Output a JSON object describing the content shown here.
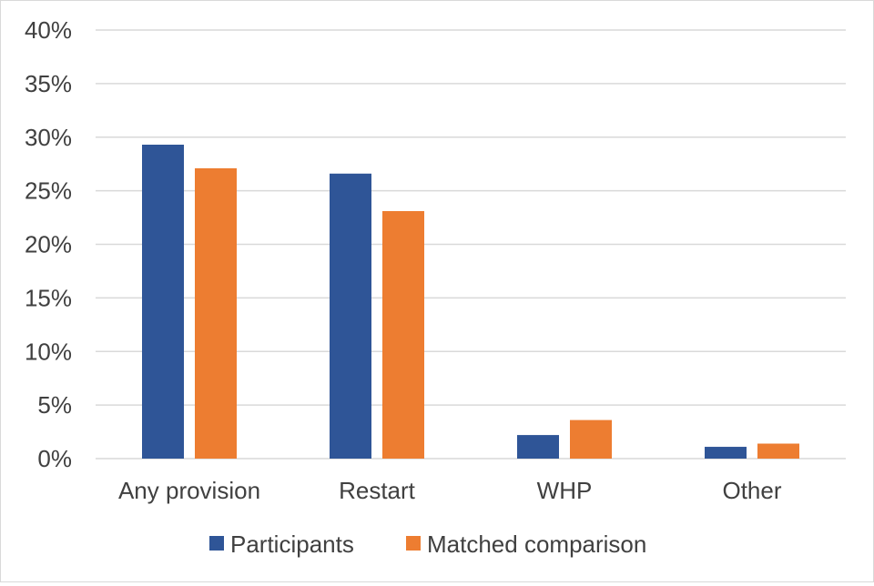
{
  "chart_data": {
    "type": "bar",
    "title": "",
    "xlabel": "",
    "ylabel": "",
    "categories": [
      "Any provision",
      "Restart",
      "WHP",
      "Other"
    ],
    "series": [
      {
        "name": "Participants",
        "color": "#2f5597",
        "values": [
          29.3,
          26.6,
          2.2,
          1.1
        ]
      },
      {
        "name": "Matched comparison",
        "color": "#ed7d31",
        "values": [
          27.1,
          23.1,
          3.6,
          1.4
        ]
      }
    ],
    "ylim": [
      0,
      40
    ],
    "yticks": [
      "0%",
      "5%",
      "10%",
      "15%",
      "20%",
      "25%",
      "30%",
      "35%",
      "40%"
    ],
    "ytick_values": [
      0,
      5,
      10,
      15,
      20,
      25,
      30,
      35,
      40
    ],
    "grid": true,
    "legend": "bottom-center",
    "gridline_color": "#d9d9d9"
  }
}
